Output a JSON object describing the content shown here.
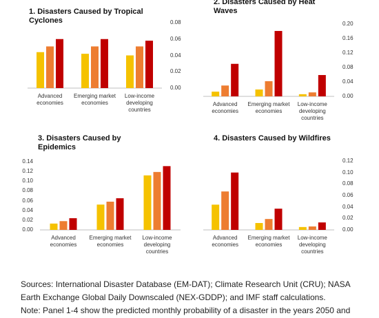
{
  "chart_data": [
    {
      "type": "bar",
      "title": "1. Disasters Caused by Tropical Cyclones",
      "categories": [
        "Advanced economies",
        "Emerging market economies",
        "Low-income developing countries"
      ],
      "series": [
        {
          "color": "#f5c200",
          "values": [
            0.044,
            0.042,
            0.04
          ]
        },
        {
          "color": "#ed7d31",
          "values": [
            0.051,
            0.051,
            0.051
          ]
        },
        {
          "color": "#c00000",
          "values": [
            0.06,
            0.06,
            0.058
          ]
        }
      ],
      "ylim": [
        0,
        0.08
      ],
      "yticks": [
        {
          "value": 0,
          "label": "0.00"
        },
        {
          "value": 0.02,
          "label": "0.02"
        },
        {
          "value": 0.04,
          "label": "0.04"
        },
        {
          "value": 0.06,
          "label": "0.06"
        },
        {
          "value": 0.08,
          "label": "0.08"
        }
      ]
    },
    {
      "type": "bar",
      "title": "2. Disasters Caused by Heat Waves",
      "categories": [
        "Advanced economies",
        "Emerging market economies",
        "Low-income developing countries"
      ],
      "series": [
        {
          "color": "#f5c200",
          "values": [
            0.013,
            0.019,
            0.006
          ]
        },
        {
          "color": "#ed7d31",
          "values": [
            0.03,
            0.042,
            0.011
          ]
        },
        {
          "color": "#c00000",
          "values": [
            0.09,
            0.181,
            0.059
          ]
        }
      ],
      "ylim": [
        0,
        0.2
      ],
      "yticks": [
        {
          "value": 0,
          "label": "0.00"
        },
        {
          "value": 0.04,
          "label": "0.04"
        },
        {
          "value": 0.08,
          "label": "0.08"
        },
        {
          "value": 0.12,
          "label": "0.12"
        },
        {
          "value": 0.16,
          "label": "0.16"
        },
        {
          "value": 0.2,
          "label": "0.20"
        }
      ]
    },
    {
      "type": "bar",
      "title": "3. Disasters Caused by Epidemics",
      "categories": [
        "Advanced economies",
        "Emerging market economies",
        "Low-income developing countries"
      ],
      "series": [
        {
          "color": "#f5c200",
          "values": [
            0.013,
            0.052,
            0.112
          ]
        },
        {
          "color": "#ed7d31",
          "values": [
            0.018,
            0.058,
            0.119
          ]
        },
        {
          "color": "#c00000",
          "values": [
            0.024,
            0.065,
            0.131
          ]
        }
      ],
      "ylim": [
        0,
        0.14
      ],
      "yticks": [
        {
          "value": 0,
          "label": "0.00"
        },
        {
          "value": 0.02,
          "label": "0.02"
        },
        {
          "value": 0.04,
          "label": "0.04"
        },
        {
          "value": 0.06,
          "label": "0.06"
        },
        {
          "value": 0.08,
          "label": "0.08"
        },
        {
          "value": 0.1,
          "label": "0.10"
        },
        {
          "value": 0.12,
          "label": "0.12"
        },
        {
          "value": 0.14,
          "label": "0.14"
        }
      ]
    },
    {
      "type": "bar",
      "title": "4. Disasters Caused by Wildfires",
      "categories": [
        "Advanced economies",
        "Emerging market economies",
        "Low-income developing countries"
      ],
      "series": [
        {
          "color": "#f5c200",
          "values": [
            0.044,
            0.012,
            0.005
          ]
        },
        {
          "color": "#ed7d31",
          "values": [
            0.067,
            0.019,
            0.006
          ]
        },
        {
          "color": "#c00000",
          "values": [
            0.1,
            0.037,
            0.013
          ]
        }
      ],
      "ylim": [
        0,
        0.12
      ],
      "yticks": [
        {
          "value": 0,
          "label": "0.00"
        },
        {
          "value": 0.02,
          "label": "0.02"
        },
        {
          "value": 0.04,
          "label": "0.04"
        },
        {
          "value": 0.06,
          "label": "0.06"
        },
        {
          "value": 0.08,
          "label": "0.08"
        },
        {
          "value": 0.1,
          "label": "0.10"
        },
        {
          "value": 0.12,
          "label": "0.12"
        }
      ]
    }
  ],
  "sources": "Sources: International Disaster Database (EM-DAT); Climate Research Unit (CRU); NASA Earth Exchange Global Daily Downscaled (NEX-GDDP); and IMF staff calculations.",
  "note": "Note: Panel 1-4 show the predicted monthly probability of a disaster in the years 2050 and"
}
